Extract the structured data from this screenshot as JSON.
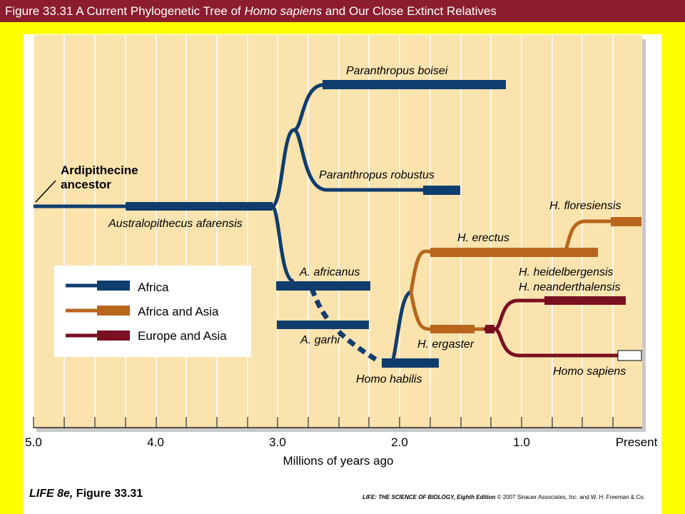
{
  "header": {
    "prefix": "Figure 33.31 A Current Phylogenetic Tree of ",
    "italic": "Homo sapiens",
    "suffix": " and Our Close Extinct Relatives"
  },
  "colors": {
    "africa": "#0f3d6e",
    "africa_asia": "#b8661c",
    "europe_asia": "#7a0f22",
    "chart_bg": "#fbe3ae"
  },
  "labels": {
    "boisei": "Paranthropus boisei",
    "robustus": "Paranthropus robustus",
    "ardi_1": "Ardipithecine",
    "ardi_2": "ancestor",
    "afarensis": "Australopithecus afarensis",
    "africanus": "A. africanus",
    "garhi": "A. garhi",
    "habilis": "Homo habilis",
    "ergaster": "H. ergaster",
    "erectus": "H. erectus",
    "floresiensis": "H. floresiensis",
    "heidelbergensis": "H. heidelbergensis",
    "neanderthalensis": "H. neanderthalensis",
    "sapiens": "Homo sapiens"
  },
  "legend": [
    {
      "label": "Africa",
      "color": "#0f3d6e"
    },
    {
      "label": "Africa and Asia",
      "color": "#b8661c"
    },
    {
      "label": "Europe and Asia",
      "color": "#7a0f22"
    }
  ],
  "axis": {
    "ticks": [
      "5.0",
      "4.0",
      "3.0",
      "2.0",
      "1.0",
      "Present"
    ],
    "label": "Millions of years ago"
  },
  "footer": {
    "left_italic": "LIFE 8e,",
    "left_rest": " Figure 33.31",
    "right_italic": "LIFE: THE SCIENCE OF BIOLOGY, Eighth Edition",
    "right_rest": "  © 2007 Sinauer Associates, Inc. and W. H. Freeman & Co."
  }
}
